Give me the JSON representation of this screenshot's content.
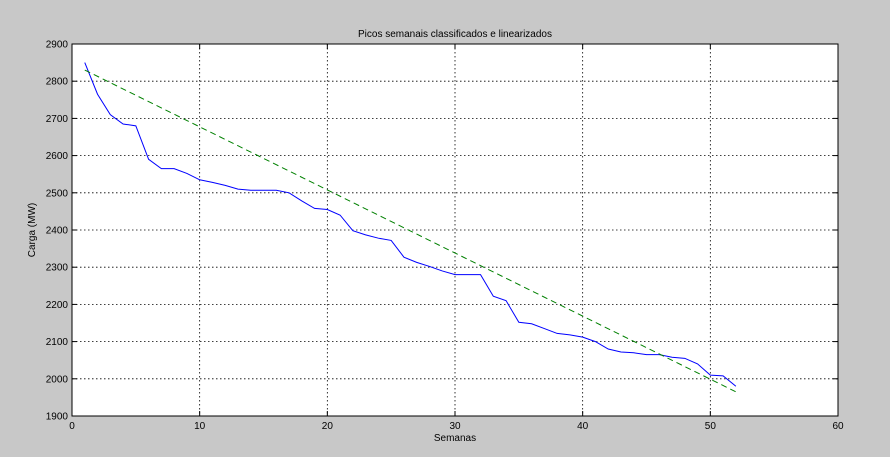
{
  "chart_data": {
    "type": "line",
    "title": "Picos semanais classificados e linearizados",
    "xlabel": "Semanas",
    "ylabel": "Carga (MW)",
    "xlim": [
      0,
      60
    ],
    "ylim": [
      1900,
      2900
    ],
    "xticks": [
      0,
      10,
      20,
      30,
      40,
      50,
      60
    ],
    "yticks": [
      1900,
      2000,
      2100,
      2200,
      2300,
      2400,
      2500,
      2600,
      2700,
      2800,
      2900
    ],
    "grid": true,
    "series": [
      {
        "color": "#0000ff",
        "dash": "solid",
        "x": [
          1,
          2,
          3,
          4,
          5,
          6,
          7,
          8,
          9,
          10,
          11,
          12,
          13,
          14,
          15,
          16,
          17,
          18,
          19,
          20,
          21,
          22,
          23,
          24,
          25,
          26,
          27,
          28,
          29,
          30,
          31,
          32,
          33,
          34,
          35,
          36,
          37,
          38,
          39,
          40,
          41,
          42,
          43,
          44,
          45,
          46,
          47,
          48,
          49,
          50,
          51,
          52
        ],
        "y": [
          2850,
          2765,
          2710,
          2685,
          2680,
          2590,
          2565,
          2565,
          2552,
          2535,
          2528,
          2520,
          2510,
          2507,
          2507,
          2507,
          2500,
          2478,
          2458,
          2455,
          2440,
          2398,
          2387,
          2378,
          2372,
          2327,
          2313,
          2302,
          2290,
          2280,
          2280,
          2280,
          2222,
          2210,
          2152,
          2148,
          2135,
          2122,
          2118,
          2112,
          2100,
          2080,
          2072,
          2070,
          2065,
          2065,
          2058,
          2055,
          2040,
          2010,
          2008,
          1980
        ]
      },
      {
        "color": "#008000",
        "dash": "dashed",
        "x": [
          1,
          52
        ],
        "y": [
          2830,
          1965
        ]
      }
    ]
  }
}
